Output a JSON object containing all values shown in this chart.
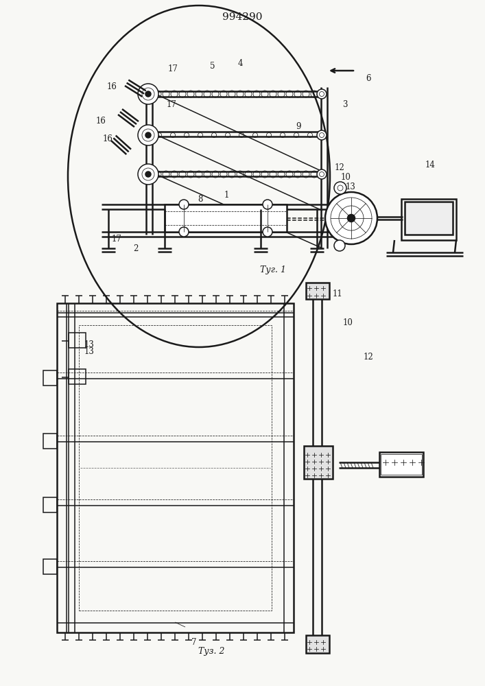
{
  "bg": "#f8f8f5",
  "lc": "#1a1a1a",
  "patent": "994290",
  "cap1": "Τуг. 1",
  "cap2": "Τуз. 2",
  "fig1_labels": [
    [
      350,
      908,
      "4"
    ],
    [
      310,
      904,
      "5"
    ],
    [
      252,
      899,
      "17"
    ],
    [
      537,
      886,
      "6"
    ],
    [
      503,
      848,
      "3"
    ],
    [
      163,
      873,
      "16"
    ],
    [
      250,
      847,
      "17"
    ],
    [
      147,
      823,
      "16"
    ],
    [
      157,
      798,
      "16"
    ],
    [
      435,
      815,
      "9"
    ],
    [
      495,
      755,
      "12"
    ],
    [
      504,
      742,
      "10"
    ],
    [
      511,
      728,
      "13"
    ],
    [
      627,
      760,
      "14"
    ],
    [
      198,
      638,
      "2"
    ],
    [
      170,
      652,
      "17"
    ],
    [
      292,
      710,
      "8"
    ],
    [
      330,
      716,
      "1"
    ]
  ],
  "fig2_labels": [
    [
      130,
      497,
      "13"
    ],
    [
      130,
      487,
      "13"
    ],
    [
      492,
      571,
      "11"
    ],
    [
      507,
      529,
      "10"
    ],
    [
      537,
      479,
      "12"
    ],
    [
      283,
      63,
      "7"
    ]
  ]
}
